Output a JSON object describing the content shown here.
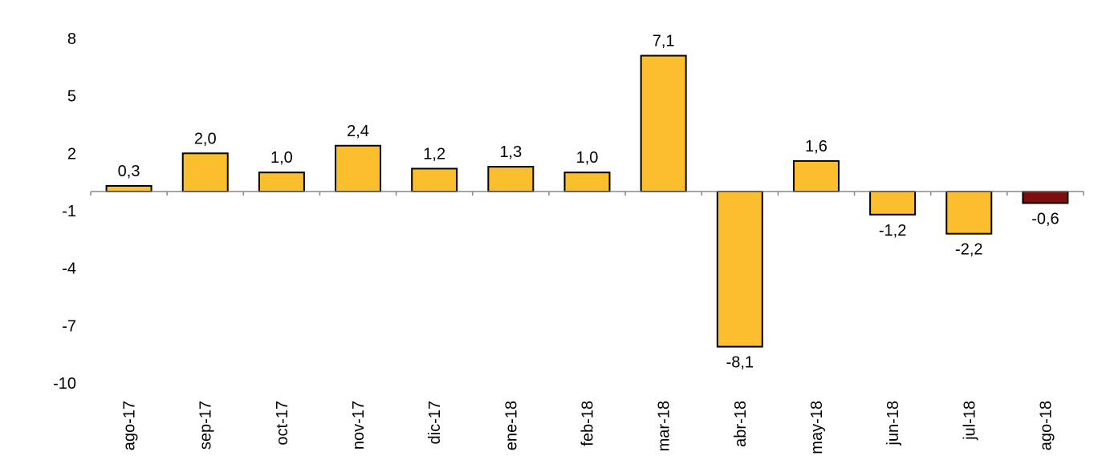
{
  "chart_data": {
    "type": "bar",
    "title": "",
    "xlabel": "",
    "ylabel": "",
    "ylim": [
      -10,
      8
    ],
    "yticks": [
      8,
      5,
      2,
      -1,
      -4,
      -7,
      -10
    ],
    "ytick_labels": [
      "8",
      "5",
      "2",
      "-1",
      "-4",
      "-7",
      "-10"
    ],
    "grid": false,
    "legend": "none",
    "categories": [
      "ago-17",
      "sep-17",
      "oct-17",
      "nov-17",
      "dic-17",
      "ene-18",
      "feb-18",
      "mar-18",
      "abr-18",
      "may-18",
      "jun-18",
      "jul-18",
      "ago-18"
    ],
    "values": [
      0.3,
      2.0,
      1.0,
      2.4,
      1.2,
      1.3,
      1.0,
      7.1,
      -8.1,
      1.6,
      -1.2,
      -2.2,
      -0.6
    ],
    "value_labels": [
      "0,3",
      "2,0",
      "1,0",
      "2,4",
      "1,2",
      "1,3",
      "1,0",
      "7,1",
      "-8,1",
      "1,6",
      "-1,2",
      "-2,2",
      "-0,6"
    ],
    "colors": {
      "bar": "#FBBF2E",
      "highlight": "#7F0F0F",
      "outline": "#000000",
      "axis": "#888888"
    },
    "highlight_index": 12
  }
}
